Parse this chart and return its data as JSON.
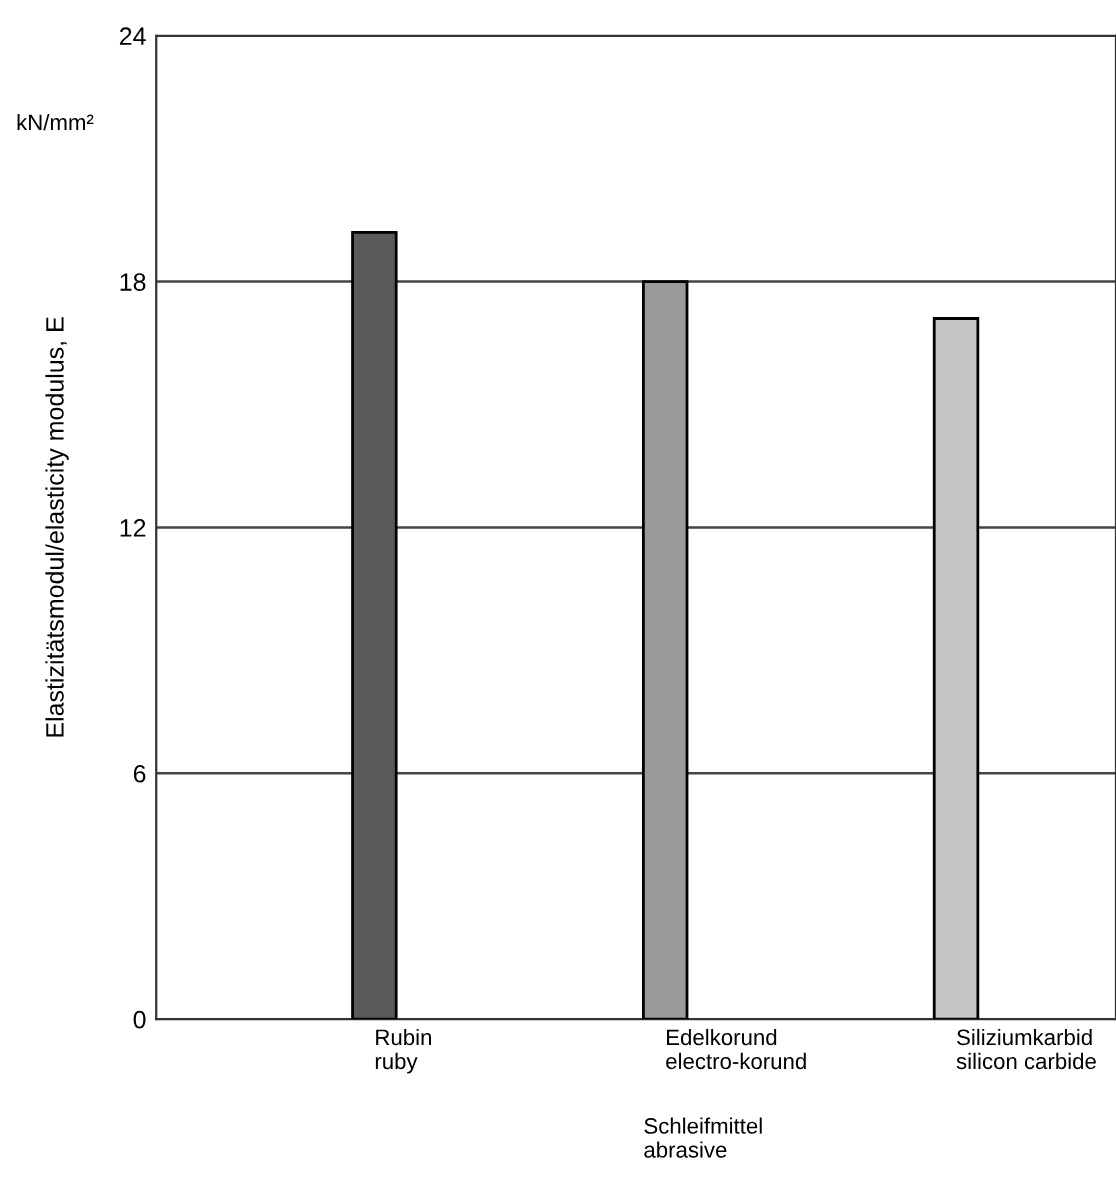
{
  "chart_data": {
    "type": "bar",
    "categories": [
      "Rubin\nruby",
      "Edelkorund\nelectro-korund",
      "Siliziumkarbid\nsilicon carbide"
    ],
    "values": [
      19.2,
      18.0,
      17.1
    ],
    "colors": [
      "#5a5a5a",
      "#9a9a9a",
      "#c4c4c4"
    ],
    "ylabel": "Elastizitätsmodul/elasticity modulus, E",
    "xlabel": "Schleifmittel\nabrasive",
    "annotations": [
      "kN/mm²"
    ],
    "ylim": [
      0,
      24
    ],
    "yticks": [
      0,
      6,
      12,
      18,
      24
    ],
    "grid": "y"
  }
}
